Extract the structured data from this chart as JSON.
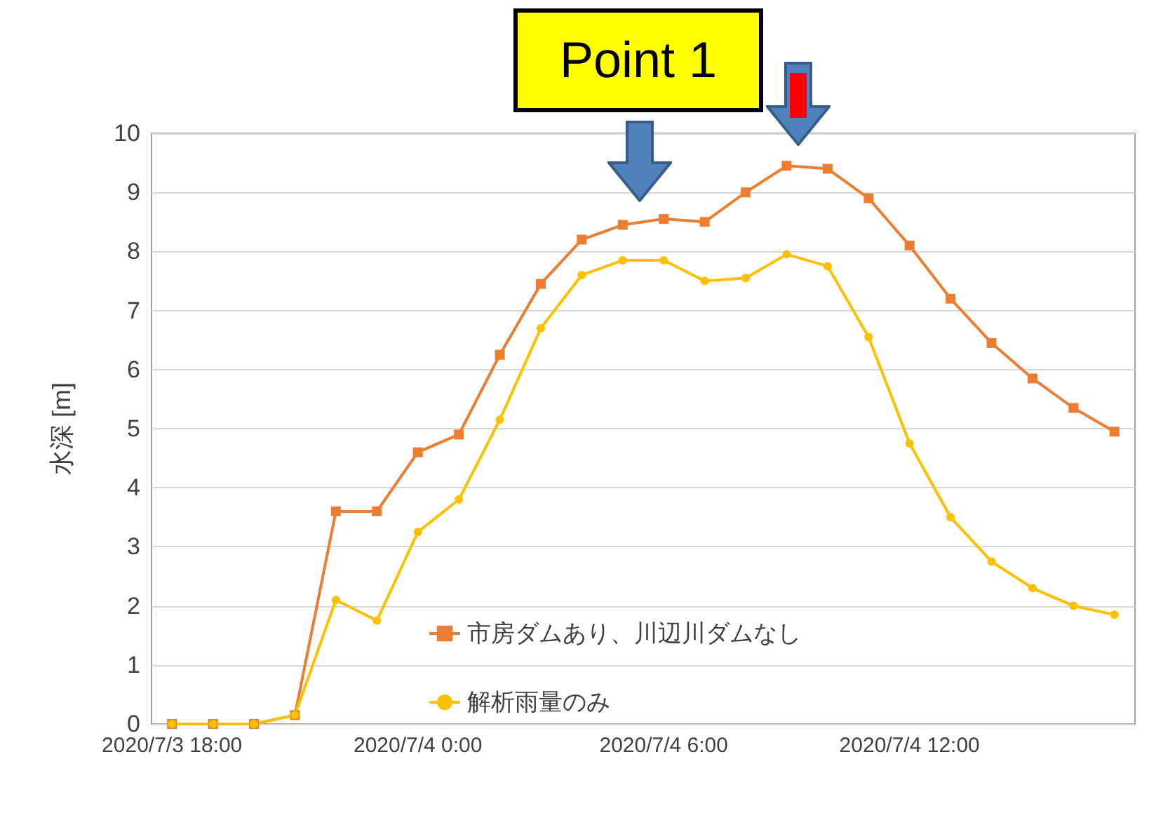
{
  "chart_data": {
    "type": "line",
    "ylabel": "水深 [m]",
    "annotations": [
      "Point 1"
    ],
    "categories": [
      "2020/7/3 18:00",
      null,
      null,
      null,
      null,
      null,
      "2020/7/4 0:00",
      null,
      null,
      null,
      null,
      null,
      "2020/7/4 6:00",
      null,
      null,
      null,
      null,
      null,
      "2020/7/4 12:00",
      null,
      null,
      null,
      null,
      null
    ],
    "series": [
      {
        "name": "市房ダムあり、川辺川ダムなし",
        "color": "#ed7d31",
        "marker": "square",
        "values": [
          0,
          0,
          0,
          0.15,
          3.6,
          3.6,
          4.6,
          4.9,
          6.25,
          7.45,
          8.2,
          8.45,
          8.55,
          8.5,
          9.0,
          9.45,
          9.4,
          8.9,
          8.1,
          7.2,
          6.45,
          5.85,
          5.35,
          4.95
        ]
      },
      {
        "name": "解析雨量のみ",
        "color": "#ffc000",
        "marker": "circle",
        "values": [
          0,
          0,
          0,
          0.15,
          2.1,
          1.75,
          3.25,
          3.8,
          5.15,
          6.7,
          7.6,
          7.85,
          7.85,
          7.5,
          7.55,
          7.95,
          7.75,
          6.55,
          4.75,
          3.5,
          2.75,
          2.3,
          2.0,
          1.85
        ]
      }
    ],
    "ylim": [
      0,
      10
    ],
    "yticks": [
      0,
      1,
      2,
      3,
      4,
      5,
      6,
      7,
      8,
      9,
      10
    ],
    "grid": "y",
    "legend": "bottom"
  }
}
